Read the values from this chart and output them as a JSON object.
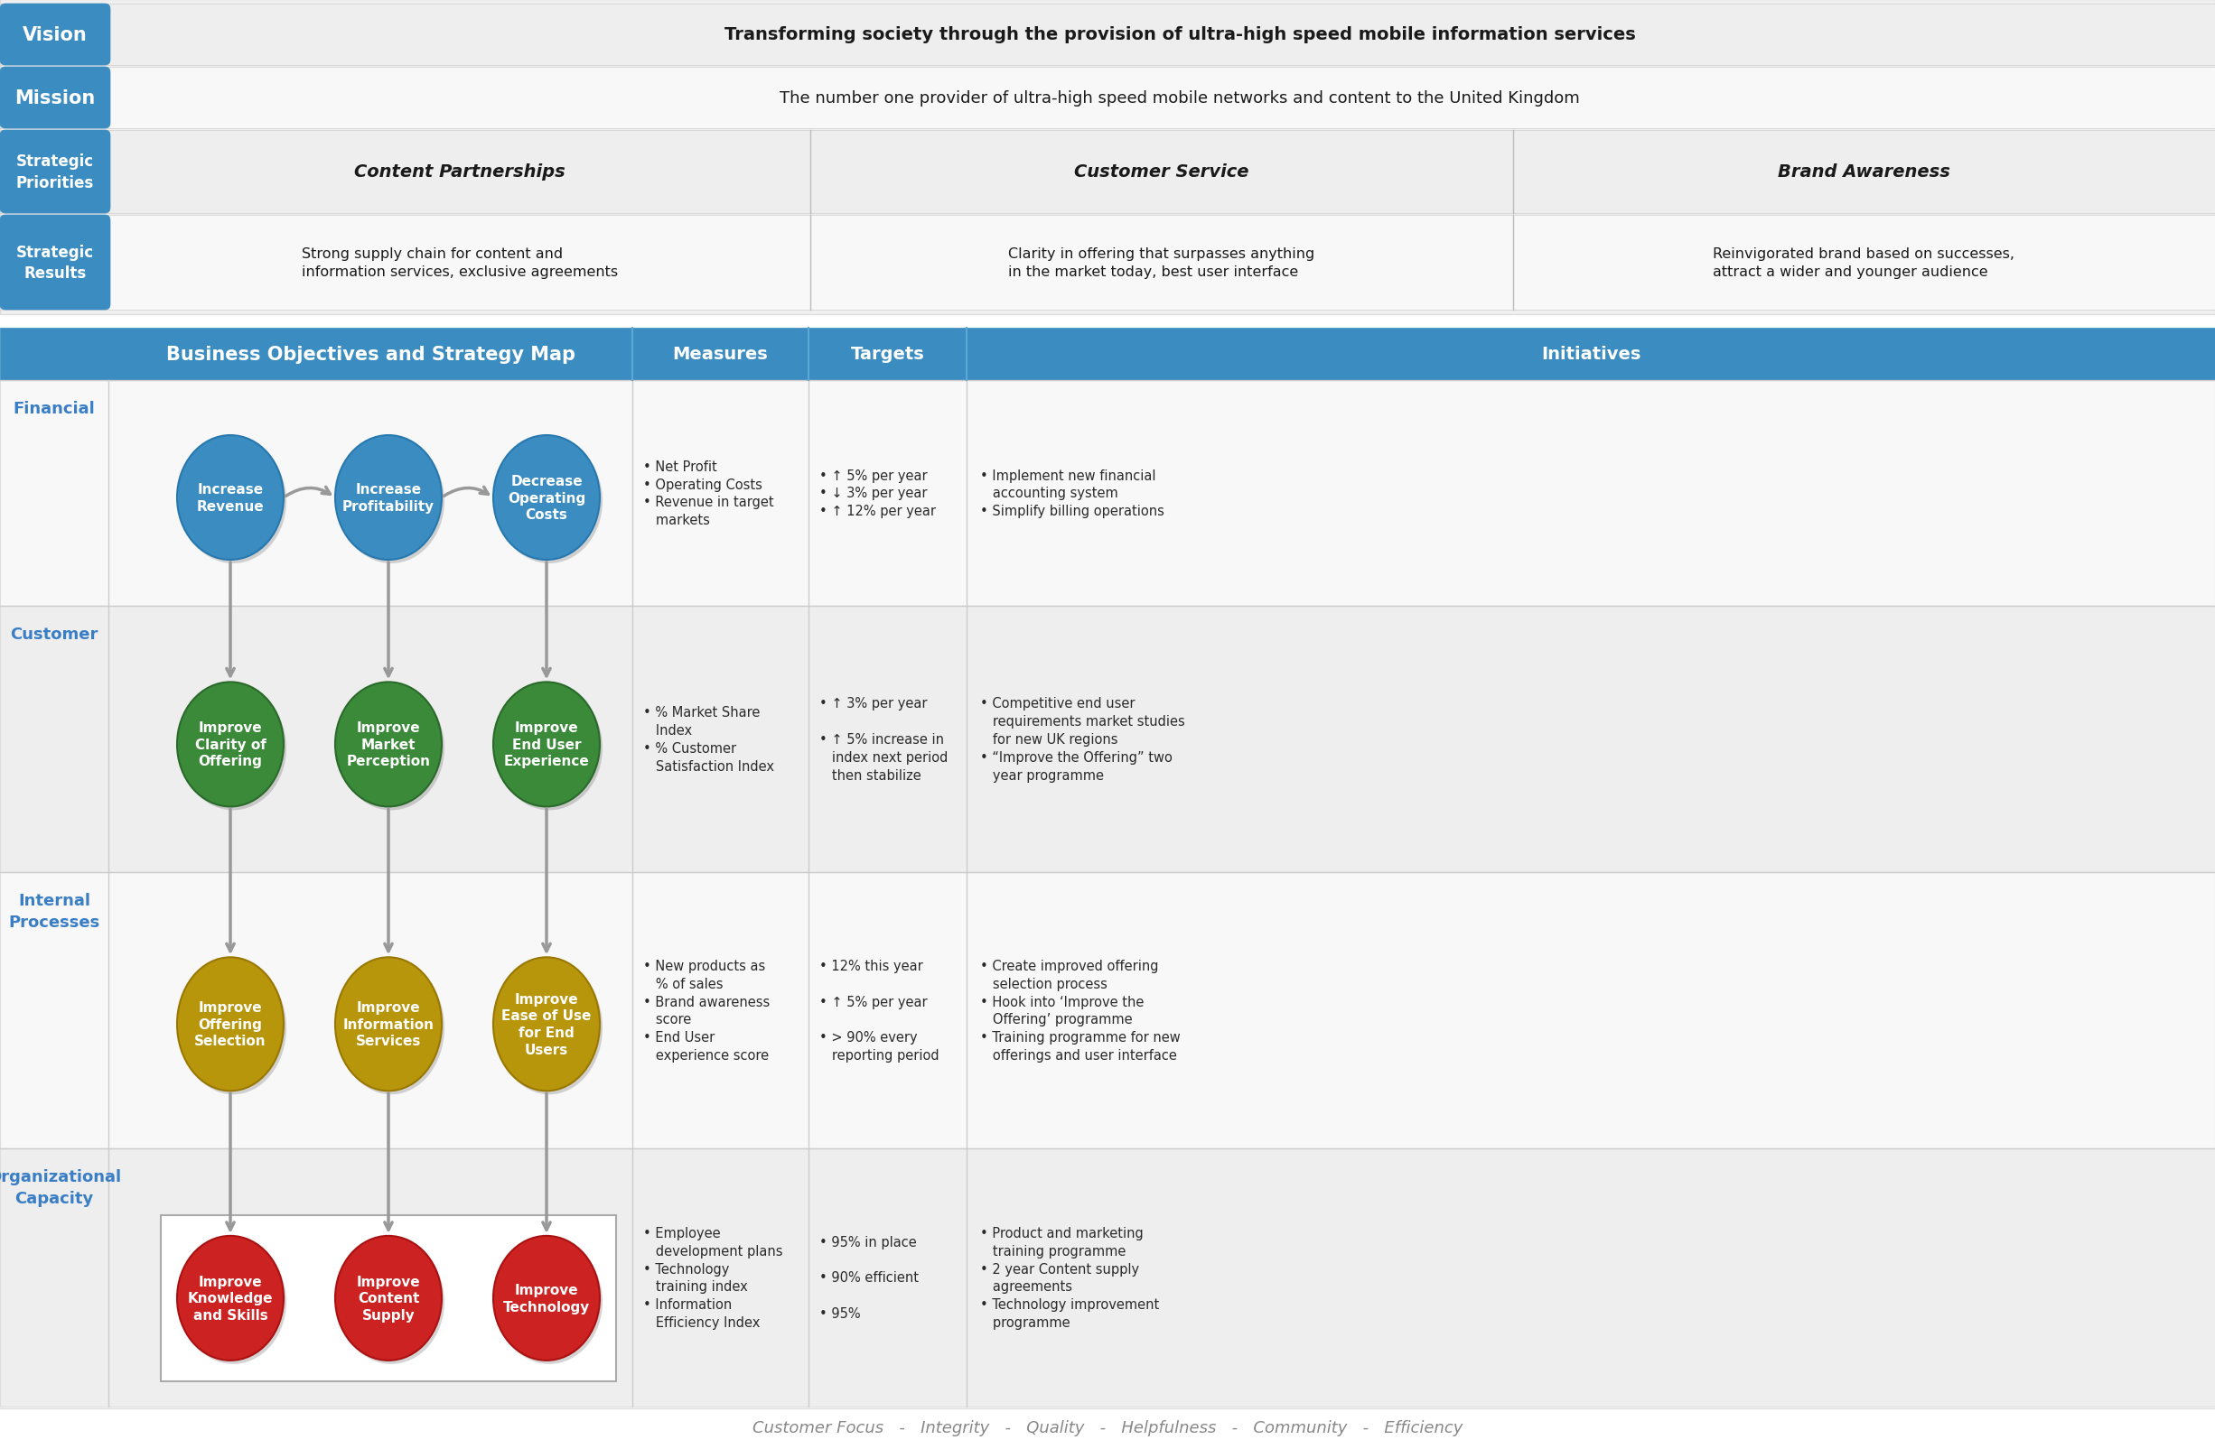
{
  "bg_color": "#ffffff",
  "blue_color": "#3A8CC1",
  "blue_dark": "#2878B0",
  "green_color": "#3A8A3A",
  "gold_color": "#B8960C",
  "red_color": "#CC2222",
  "text_blue": "#3A7EC6",
  "header_bg": "#3A8CC1",
  "light_gray": "#F4F4F4",
  "alt_gray": "#EBEBEB",
  "border_color": "#CCCCCC",
  "arrow_color": "#999999",
  "vision_text": "Transforming society through the provision of ultra-high speed mobile information services",
  "mission_text": "The number one provider of ultra-high speed mobile networks and content to the United Kingdom",
  "strategic_priorities": [
    "Content Partnerships",
    "Customer Service",
    "Brand Awareness"
  ],
  "strategic_results": [
    "Strong supply chain for content and\ninformation services, exclusive agreements",
    "Clarity in offering that surpasses anything\nin the market today, best user interface",
    "Reinvigorated brand based on successes,\nattract a wider and younger audience"
  ],
  "financial_ellipses": [
    "Increase\nRevenue",
    "Increase\nProfitability",
    "Decrease\nOperating\nCosts"
  ],
  "customer_ellipses": [
    "Improve\nClarity of\nOffering",
    "Improve\nMarket\nPerception",
    "Improve\nEnd User\nExperience"
  ],
  "internal_ellipses": [
    "Improve\nOffering\nSelection",
    "Improve\nInformation\nServices",
    "Improve\nEase of Use\nfor End\nUsers"
  ],
  "org_ellipses": [
    "Improve\nKnowledge\nand Skills",
    "Improve\nContent\nSupply",
    "Improve\nTechnology"
  ],
  "measures": [
    "• Net Profit\n• Operating Costs\n• Revenue in target\n   markets",
    "• % Market Share\n   Index\n• % Customer\n   Satisfaction Index",
    "• New products as\n   % of sales\n• Brand awareness\n   score\n• End User\n   experience score",
    "• Employee\n   development plans\n• Technology\n   training index\n• Information\n   Efficiency Index"
  ],
  "targets": [
    "• ↑ 5% per year\n• ↓ 3% per year\n• ↑ 12% per year",
    "• ↑ 3% per year\n\n• ↑ 5% increase in\n   index next period\n   then stabilize",
    "• 12% this year\n\n• ↑ 5% per year\n\n• > 90% every\n   reporting period",
    "• 95% in place\n\n• 90% efficient\n\n• 95%"
  ],
  "initiatives": [
    "• Implement new financial\n   accounting system\n• Simplify billing operations",
    "• Competitive end user\n   requirements market studies\n   for new UK regions\n• “Improve the Offering” two\n   year programme",
    "• Create improved offering\n   selection process\n• Hook into ‘Improve the\n   Offering’ programme\n• Training programme for new\n   offerings and user interface",
    "• Product and marketing\n   training programme\n• 2 year Content supply\n   agreements\n• Technology improvement\n   programme"
  ],
  "footer_text": "Customer Focus   -   Integrity   -   Quality   -   Helpfulness   -   Community   -   Efficiency"
}
